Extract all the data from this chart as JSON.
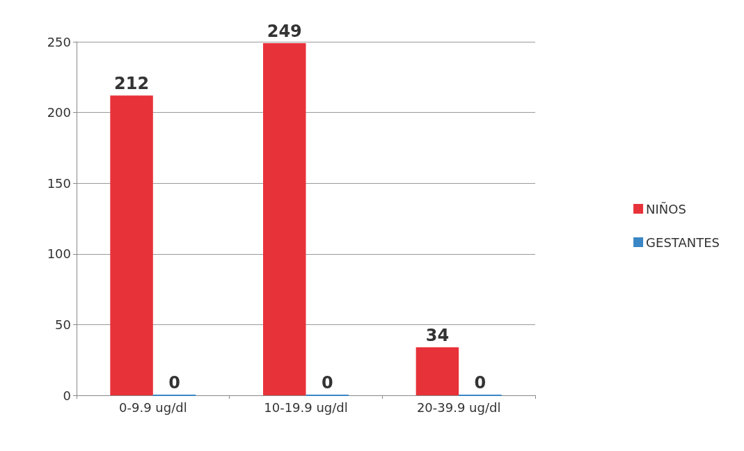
{
  "chart_data": {
    "type": "bar",
    "categories": [
      "0-9.9 ug/dl",
      "10-19.9 ug/dl",
      "20-39.9 ug/dl"
    ],
    "series": [
      {
        "name": "NIÑOS",
        "color": "#e8323a",
        "values": [
          212,
          249,
          34
        ]
      },
      {
        "name": "GESTANTES",
        "color": "#3a86c6",
        "values": [
          0,
          0,
          0
        ]
      }
    ],
    "ylim": [
      0,
      250
    ],
    "yticks": [
      0,
      50,
      100,
      150,
      200,
      250
    ],
    "grid": "y",
    "legend": "right",
    "data_labels": true
  }
}
